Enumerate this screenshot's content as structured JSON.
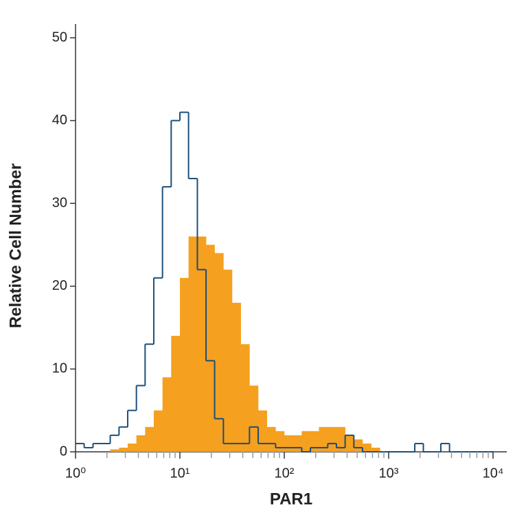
{
  "chart_data": {
    "type": "histogram",
    "xlabel": "PAR1",
    "ylabel": "Relative Cell Number",
    "xscale": "log",
    "xlim": [
      1,
      10000
    ],
    "ylim": [
      0,
      50
    ],
    "xticks": [
      {
        "value": 1,
        "label": "10⁰"
      },
      {
        "value": 10,
        "label": "10¹"
      },
      {
        "value": 100,
        "label": "10²"
      },
      {
        "value": 1000,
        "label": "10³"
      },
      {
        "value": 10000,
        "label": "10⁴"
      }
    ],
    "xminorticks": [
      2,
      3,
      4,
      5,
      6,
      7,
      8,
      9,
      20,
      30,
      40,
      50,
      60,
      70,
      80,
      90,
      200,
      300,
      400,
      500,
      600,
      700,
      800,
      900,
      2000,
      3000,
      4000,
      5000,
      6000,
      7000,
      8000,
      9000
    ],
    "yticks": [
      0,
      10,
      20,
      30,
      40,
      50
    ],
    "bins": [
      1,
      1.21,
      1.47,
      1.78,
      2.15,
      2.61,
      3.16,
      3.83,
      4.64,
      5.62,
      6.81,
      8.25,
      10,
      12.1,
      14.7,
      17.8,
      21.5,
      26.1,
      31.6,
      38.3,
      46.4,
      56.2,
      68.1,
      82.5,
      100,
      121,
      147,
      178,
      215,
      261,
      316,
      383,
      464,
      562,
      681,
      825,
      1000,
      1210,
      1470,
      1780,
      2150,
      2610,
      3160,
      3830,
      4640,
      5620,
      6810,
      8250,
      10000
    ],
    "series": [
      {
        "color": "#f5a01f",
        "fill": true,
        "values": [
          0,
          0,
          0,
          0,
          0.3,
          0.5,
          1,
          2,
          3,
          5,
          9,
          14,
          21,
          26,
          26,
          25,
          24,
          22,
          18,
          13,
          8,
          5,
          3,
          2.5,
          2,
          2,
          2.5,
          2.5,
          3,
          3,
          3,
          2,
          1.5,
          1,
          0.5,
          0,
          0,
          0,
          0,
          0,
          0,
          0,
          0,
          0,
          0,
          0,
          0,
          0
        ]
      },
      {
        "color": "#1a4e7a",
        "fill": false,
        "values": [
          1,
          0.5,
          1,
          1,
          2,
          3,
          5,
          8,
          13,
          21,
          32,
          40,
          41,
          33,
          22,
          11,
          4,
          1,
          1,
          1,
          3,
          1,
          1,
          0.5,
          0.5,
          0.5,
          0,
          0.5,
          0.5,
          1,
          0.5,
          2,
          0.5,
          0,
          0,
          0,
          0,
          0,
          0,
          1,
          0,
          0,
          1,
          0,
          0,
          0,
          0,
          0
        ]
      }
    ]
  }
}
